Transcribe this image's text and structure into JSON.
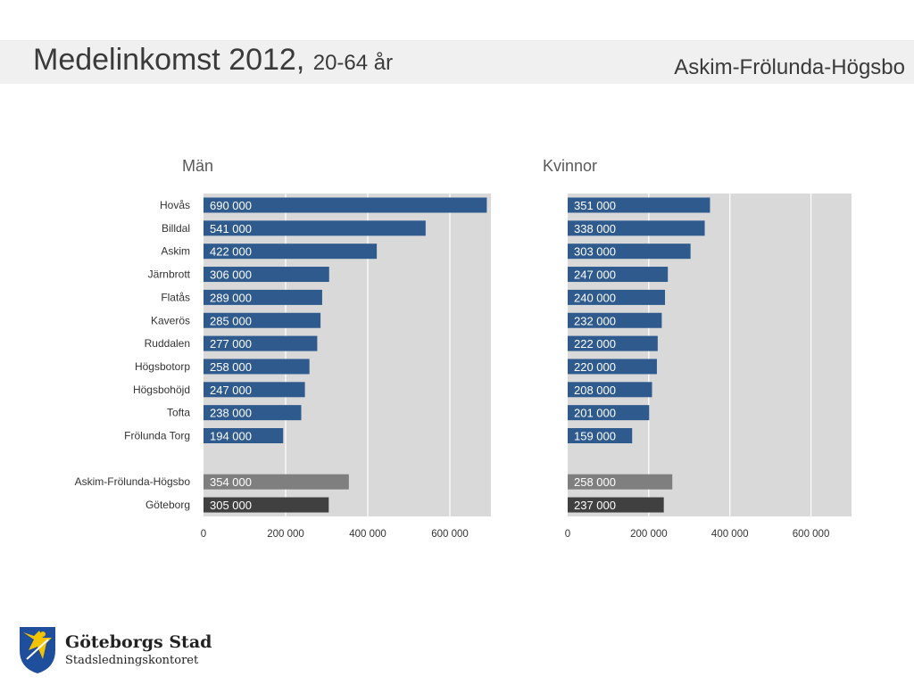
{
  "header": {
    "title": "Medelinkomst 2012,",
    "subtitle": "20-64 år",
    "area": "Askim-Frölunda-Högsbo"
  },
  "logo": {
    "name": "Göteborgs Stad",
    "department": "Stadsledningskontoret"
  },
  "colors": {
    "plot_bg": "#d9d9d9",
    "gridline": "#ffffff",
    "district": "#2e5a8e",
    "area_total": "#7f7f7f",
    "city_total": "#404040",
    "label_text": "#ffffff"
  },
  "chart_data": [
    {
      "type": "bar",
      "orientation": "horizontal",
      "title": "Män",
      "categories": [
        "Hovås",
        "Billdal",
        "Askim",
        "Järnbrott",
        "Flatås",
        "Kaverös",
        "Ruddalen",
        "Högsbotorp",
        "Högsbohöjd",
        "Tofta",
        "Frölunda Torg",
        "",
        "Askim-Frölunda-Högsbo",
        "Göteborg"
      ],
      "values": [
        690000,
        541000,
        422000,
        306000,
        289000,
        285000,
        277000,
        258000,
        247000,
        238000,
        194000,
        null,
        354000,
        305000
      ],
      "value_labels": [
        "690 000",
        "541 000",
        "422 000",
        "306 000",
        "289 000",
        "285 000",
        "277 000",
        "258 000",
        "247 000",
        "238 000",
        "194 000",
        "",
        "354 000",
        "305 000"
      ],
      "xlim": [
        0,
        700000
      ],
      "xticks": [
        0,
        200000,
        400000,
        600000
      ],
      "xtick_labels": [
        "0",
        "200 000",
        "400 000",
        "600 000"
      ],
      "grid": true
    },
    {
      "type": "bar",
      "orientation": "horizontal",
      "title": "Kvinnor",
      "categories": [
        "Hovås",
        "Billdal",
        "Askim",
        "Järnbrott",
        "Flatås",
        "Kaverös",
        "Ruddalen",
        "Högsbotorp",
        "Högsbohöjd",
        "Tofta",
        "Frölunda Torg",
        "",
        "Askim-Frölunda-Högsbo",
        "Göteborg"
      ],
      "values": [
        351000,
        338000,
        303000,
        247000,
        240000,
        232000,
        222000,
        220000,
        208000,
        201000,
        159000,
        null,
        258000,
        237000
      ],
      "value_labels": [
        "351 000",
        "338 000",
        "303 000",
        "247 000",
        "240 000",
        "232 000",
        "222 000",
        "220 000",
        "208 000",
        "201 000",
        "159 000",
        "",
        "258 000",
        "237 000"
      ],
      "xlim": [
        0,
        700000
      ],
      "xticks": [
        0,
        200000,
        400000,
        600000
      ],
      "xtick_labels": [
        "0",
        "200 000",
        "400 000",
        "600 000"
      ],
      "grid": true
    }
  ]
}
